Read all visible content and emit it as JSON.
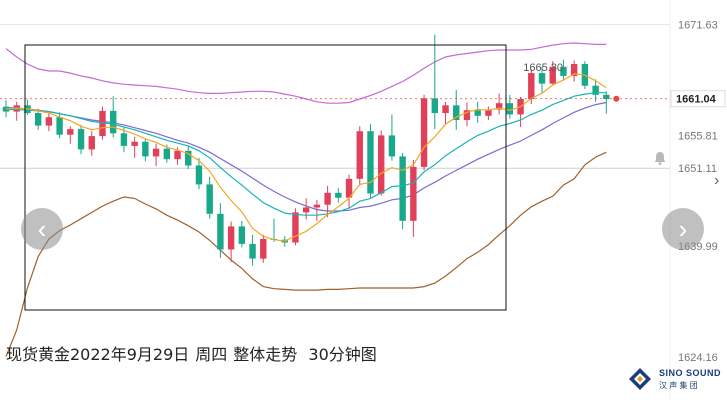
{
  "caption": {
    "title": "现货黄金2022年9月29日",
    "weekday": "周四",
    "desc": "整体走势",
    "timeframe": "30分钟图"
  },
  "price_axis": {
    "labels": [
      "1671.63",
      "1655.81",
      "1651.11",
      "1639.99",
      "1624.16"
    ],
    "current_price": "1661.04",
    "current_price_color": "#e8473f",
    "high_marker": "1665.30"
  },
  "logo": {
    "text": "SINO SOUND",
    "sub": "汉 声 集 团"
  },
  "colors": {
    "up": "#e0405a",
    "down": "#1aa88a",
    "ma_orange": "#f5a623",
    "ma_teal": "#19b3b8",
    "boll_mid": "#7b6cd4",
    "boll_upper": "#c66ad6",
    "boll_lower": "#a0612a"
  },
  "chart_data": {
    "type": "candlestick",
    "title": "现货黄金2022年9月29日 周四 整体走势 30分钟图",
    "ylim": [
      1622,
      1674
    ],
    "ticks": [
      1671.63,
      1655.81,
      1651.11,
      1639.99,
      1624.16
    ],
    "candles": [
      [
        1659.9,
        1660.8,
        1658.4,
        1659.2
      ],
      [
        1659.2,
        1660.6,
        1657.9,
        1660.1
      ],
      [
        1660.1,
        1660.9,
        1658.7,
        1659.0
      ],
      [
        1659.0,
        1659.6,
        1656.6,
        1657.2
      ],
      [
        1657.2,
        1658.9,
        1656.4,
        1658.4
      ],
      [
        1658.4,
        1659.1,
        1655.4,
        1655.9
      ],
      [
        1655.9,
        1657.1,
        1654.6,
        1656.7
      ],
      [
        1656.7,
        1657.3,
        1653.1,
        1653.8
      ],
      [
        1653.8,
        1656.4,
        1652.9,
        1655.7
      ],
      [
        1655.7,
        1659.9,
        1655.2,
        1659.3
      ],
      [
        1659.3,
        1661.4,
        1655.5,
        1656.1
      ],
      [
        1656.1,
        1656.9,
        1653.4,
        1654.3
      ],
      [
        1654.3,
        1655.6,
        1652.6,
        1654.9
      ],
      [
        1654.9,
        1655.4,
        1652.1,
        1652.8
      ],
      [
        1652.8,
        1654.6,
        1651.4,
        1653.9
      ],
      [
        1653.9,
        1654.5,
        1651.9,
        1652.4
      ],
      [
        1652.4,
        1654.1,
        1651.6,
        1653.6
      ],
      [
        1653.6,
        1654.3,
        1651.0,
        1651.5
      ],
      [
        1651.5,
        1652.6,
        1648.1,
        1648.8
      ],
      [
        1648.8,
        1649.9,
        1643.9,
        1644.6
      ],
      [
        1644.6,
        1646.1,
        1638.3,
        1639.5
      ],
      [
        1639.5,
        1643.5,
        1637.7,
        1642.8
      ],
      [
        1642.8,
        1643.6,
        1639.8,
        1640.3
      ],
      [
        1640.3,
        1641.6,
        1637.2,
        1638.2
      ],
      [
        1638.2,
        1641.6,
        1637.6,
        1641.0
      ],
      [
        1641.0,
        1643.9,
        1640.6,
        1640.9
      ],
      [
        1640.9,
        1641.4,
        1639.9,
        1640.5
      ],
      [
        1640.5,
        1645.4,
        1640.1,
        1644.8
      ],
      [
        1644.8,
        1646.8,
        1643.8,
        1645.5
      ],
      [
        1645.5,
        1646.6,
        1643.6,
        1645.9
      ],
      [
        1645.9,
        1648.6,
        1644.1,
        1647.6
      ],
      [
        1647.6,
        1648.3,
        1646.2,
        1646.9
      ],
      [
        1646.9,
        1650.2,
        1645.4,
        1649.6
      ],
      [
        1649.6,
        1657.1,
        1648.6,
        1656.4
      ],
      [
        1656.4,
        1657.4,
        1646.9,
        1647.5
      ],
      [
        1647.5,
        1656.5,
        1647.2,
        1655.8
      ],
      [
        1655.8,
        1658.8,
        1652.2,
        1652.8
      ],
      [
        1652.8,
        1653.3,
        1642.4,
        1643.6
      ],
      [
        1643.6,
        1652.3,
        1641.3,
        1651.3
      ],
      [
        1651.3,
        1661.6,
        1650.8,
        1661.1
      ],
      [
        1661.1,
        1670.2,
        1656.7,
        1659.0
      ],
      [
        1659.0,
        1660.6,
        1657.3,
        1660.1
      ],
      [
        1660.1,
        1662.3,
        1656.6,
        1658.0
      ],
      [
        1658.0,
        1660.5,
        1657.1,
        1659.4
      ],
      [
        1659.4,
        1660.6,
        1657.6,
        1658.6
      ],
      [
        1658.6,
        1659.9,
        1658.0,
        1659.5
      ],
      [
        1659.5,
        1661.8,
        1658.8,
        1660.4
      ],
      [
        1660.4,
        1661.6,
        1658.2,
        1658.8
      ],
      [
        1658.8,
        1661.3,
        1657.0,
        1661.0
      ],
      [
        1661.0,
        1665.3,
        1660.3,
        1664.7
      ],
      [
        1664.7,
        1665.6,
        1661.9,
        1663.2
      ],
      [
        1663.2,
        1666.4,
        1663.0,
        1665.6
      ],
      [
        1665.6,
        1666.6,
        1663.8,
        1664.3
      ],
      [
        1664.3,
        1666.5,
        1663.5,
        1666.0
      ],
      [
        1666.0,
        1666.4,
        1662.4,
        1662.9
      ],
      [
        1662.9,
        1663.8,
        1660.6,
        1661.6
      ],
      [
        1661.6,
        1662.1,
        1658.9,
        1661.0
      ]
    ],
    "ma_orange": [
      1659.6,
      1659.7,
      1659.6,
      1659.3,
      1659.0,
      1658.4,
      1657.9,
      1657.1,
      1656.6,
      1656.9,
      1657.0,
      1656.5,
      1656.0,
      1655.3,
      1654.8,
      1654.1,
      1653.7,
      1653.2,
      1652.2,
      1650.7,
      1648.4,
      1646.5,
      1644.9,
      1642.5,
      1641.4,
      1640.9,
      1640.7,
      1641.4,
      1642.1,
      1643.2,
      1644.5,
      1645.6,
      1646.8,
      1648.8,
      1649.1,
      1650.4,
      1651.2,
      1650.8,
      1651.6,
      1654.1,
      1655.6,
      1657.4,
      1658.4,
      1659.1,
      1659.5,
      1659.4,
      1659.7,
      1659.4,
      1659.9,
      1661.1,
      1661.8,
      1663.0,
      1663.7,
      1664.6,
      1664.4,
      1663.6,
      1662.6
    ],
    "ma_teal": [
      1659.5,
      1659.5,
      1659.4,
      1659.3,
      1659.2,
      1658.9,
      1658.6,
      1658.2,
      1657.8,
      1657.6,
      1657.4,
      1657.0,
      1656.6,
      1656.1,
      1655.6,
      1655.1,
      1654.7,
      1654.3,
      1653.6,
      1652.6,
      1651.2,
      1649.9,
      1648.7,
      1647.4,
      1646.2,
      1645.4,
      1644.7,
      1644.5,
      1644.4,
      1644.4,
      1644.6,
      1644.9,
      1645.4,
      1646.4,
      1646.8,
      1647.6,
      1648.5,
      1648.6,
      1649.0,
      1650.6,
      1651.6,
      1652.9,
      1653.9,
      1654.9,
      1655.8,
      1656.4,
      1657.1,
      1657.5,
      1658.0,
      1658.8,
      1659.4,
      1660.2,
      1660.8,
      1661.4,
      1661.7,
      1661.9,
      1661.9
    ],
    "boll_mid": [
      1659.8,
      1659.7,
      1659.6,
      1659.4,
      1659.2,
      1658.9,
      1658.6,
      1658.3,
      1658.0,
      1657.8,
      1657.6,
      1657.3,
      1656.9,
      1656.5,
      1656.1,
      1655.6,
      1655.1,
      1654.7,
      1654.1,
      1653.4,
      1652.5,
      1651.6,
      1650.7,
      1649.7,
      1648.7,
      1647.8,
      1647.0,
      1646.3,
      1645.7,
      1645.2,
      1645.0,
      1645.0,
      1645.1,
      1645.5,
      1645.7,
      1646.1,
      1646.6,
      1646.8,
      1647.3,
      1648.3,
      1649.1,
      1650.0,
      1650.8,
      1651.6,
      1652.4,
      1653.1,
      1653.8,
      1654.4,
      1655.0,
      1655.8,
      1656.6,
      1657.5,
      1658.3,
      1659.1,
      1659.7,
      1660.2,
      1660.5
    ],
    "boll_upper": [
      1668.2,
      1667.0,
      1666.0,
      1665.3,
      1665.0,
      1665.0,
      1664.7,
      1664.3,
      1664.0,
      1663.6,
      1663.3,
      1663.1,
      1663.0,
      1662.9,
      1662.8,
      1662.6,
      1662.4,
      1662.1,
      1661.9,
      1661.8,
      1661.8,
      1661.9,
      1662.0,
      1662.1,
      1662.1,
      1662.0,
      1661.7,
      1661.4,
      1661.0,
      1660.6,
      1660.4,
      1660.4,
      1660.5,
      1661.0,
      1661.5,
      1662.1,
      1662.8,
      1663.5,
      1664.4,
      1665.4,
      1666.3,
      1667.0,
      1667.3,
      1667.5,
      1667.7,
      1667.9,
      1668.0,
      1668.0,
      1668.0,
      1668.1,
      1668.4,
      1668.7,
      1668.9,
      1669.0,
      1668.9,
      1668.8,
      1668.8
    ],
    "boll_lower": [
      1624.2,
      1628.0,
      1634.0,
      1638.5,
      1641.0,
      1642.2,
      1643.0,
      1643.9,
      1644.8,
      1645.7,
      1646.4,
      1647.0,
      1646.8,
      1646.0,
      1645.3,
      1644.4,
      1643.7,
      1642.9,
      1642.0,
      1640.8,
      1639.4,
      1638.0,
      1636.8,
      1635.3,
      1634.2,
      1633.9,
      1633.8,
      1633.7,
      1633.7,
      1633.7,
      1633.8,
      1633.8,
      1633.9,
      1634.0,
      1634.0,
      1634.0,
      1634.0,
      1634.0,
      1634.0,
      1634.2,
      1634.7,
      1635.7,
      1636.9,
      1638.2,
      1639.1,
      1640.2,
      1641.6,
      1642.9,
      1644.4,
      1645.6,
      1646.4,
      1647.1,
      1648.7,
      1649.6,
      1651.6,
      1652.7,
      1653.4
    ]
  }
}
